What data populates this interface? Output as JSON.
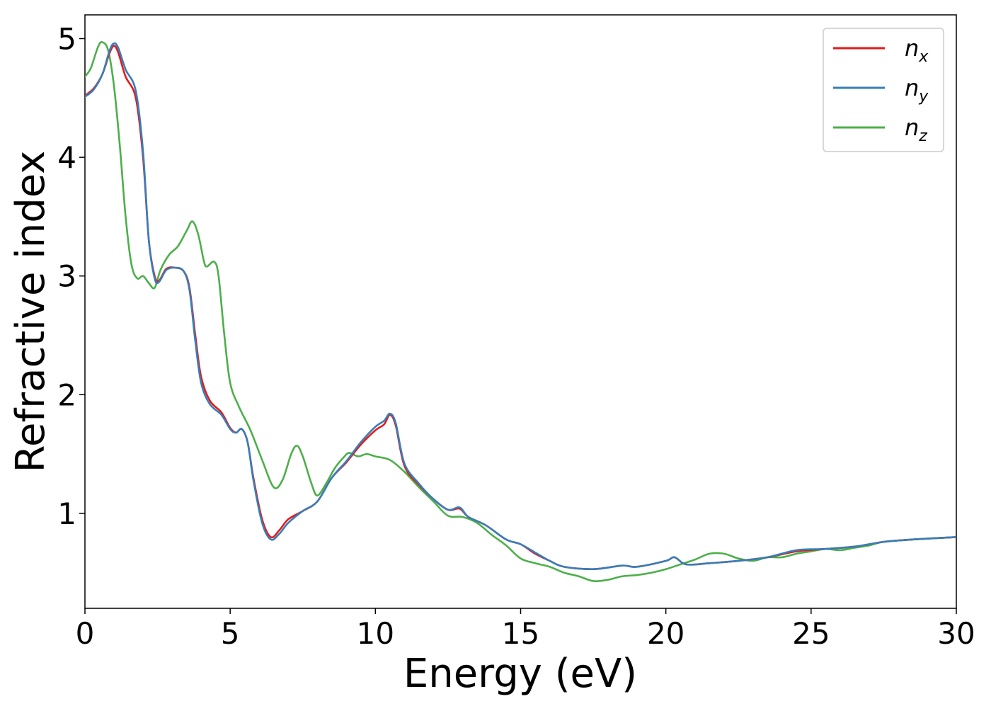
{
  "chart_data": {
    "type": "line",
    "xlabel": "Energy (eV)",
    "ylabel": "Refractive index",
    "xlim": [
      0,
      30
    ],
    "ylim": [
      0.2,
      5.2
    ],
    "x_ticks": [
      0,
      5,
      10,
      15,
      20,
      25,
      30
    ],
    "y_ticks": [
      1,
      2,
      3,
      4,
      5
    ],
    "grid": false,
    "legend_position": "top-right",
    "series": [
      {
        "name": "n_x",
        "label_main": "n",
        "label_sub": "x",
        "color": "#e41a1c",
        "points": [
          [
            0,
            4.52
          ],
          [
            0.3,
            4.58
          ],
          [
            0.6,
            4.7
          ],
          [
            0.85,
            4.88
          ],
          [
            1.0,
            4.94
          ],
          [
            1.15,
            4.88
          ],
          [
            1.4,
            4.68
          ],
          [
            1.75,
            4.5
          ],
          [
            2.0,
            4.0
          ],
          [
            2.2,
            3.3
          ],
          [
            2.4,
            3.0
          ],
          [
            2.55,
            2.96
          ],
          [
            2.8,
            3.06
          ],
          [
            3.1,
            3.07
          ],
          [
            3.4,
            3.04
          ],
          [
            3.6,
            2.9
          ],
          [
            3.8,
            2.5
          ],
          [
            4.0,
            2.15
          ],
          [
            4.3,
            1.95
          ],
          [
            4.7,
            1.85
          ],
          [
            5.0,
            1.72
          ],
          [
            5.2,
            1.68
          ],
          [
            5.4,
            1.71
          ],
          [
            5.6,
            1.6
          ],
          [
            5.8,
            1.3
          ],
          [
            6.1,
            0.95
          ],
          [
            6.4,
            0.8
          ],
          [
            6.7,
            0.86
          ],
          [
            7.0,
            0.95
          ],
          [
            7.5,
            1.02
          ],
          [
            8.0,
            1.1
          ],
          [
            8.5,
            1.3
          ],
          [
            9.0,
            1.43
          ],
          [
            9.5,
            1.58
          ],
          [
            10.0,
            1.7
          ],
          [
            10.3,
            1.75
          ],
          [
            10.5,
            1.83
          ],
          [
            10.7,
            1.74
          ],
          [
            11.0,
            1.4
          ],
          [
            11.5,
            1.24
          ],
          [
            12.0,
            1.12
          ],
          [
            12.5,
            1.03
          ],
          [
            12.9,
            1.04
          ],
          [
            13.2,
            0.97
          ],
          [
            13.8,
            0.9
          ],
          [
            14.5,
            0.78
          ],
          [
            15.0,
            0.74
          ],
          [
            15.5,
            0.66
          ],
          [
            16.0,
            0.6
          ],
          [
            16.5,
            0.55
          ],
          [
            17.5,
            0.53
          ],
          [
            18.5,
            0.56
          ],
          [
            19.0,
            0.55
          ],
          [
            20.0,
            0.6
          ],
          [
            20.3,
            0.63
          ],
          [
            20.7,
            0.57
          ],
          [
            21.5,
            0.58
          ],
          [
            22.5,
            0.6
          ],
          [
            23.5,
            0.63
          ],
          [
            24.5,
            0.68
          ],
          [
            25.5,
            0.7
          ],
          [
            26.5,
            0.72
          ],
          [
            27.5,
            0.76
          ],
          [
            28.5,
            0.78
          ],
          [
            30,
            0.8
          ]
        ]
      },
      {
        "name": "n_y",
        "label_main": "n",
        "label_sub": "y",
        "color": "#377eb8",
        "points": [
          [
            0,
            4.51
          ],
          [
            0.3,
            4.57
          ],
          [
            0.6,
            4.7
          ],
          [
            0.85,
            4.9
          ],
          [
            1.0,
            4.96
          ],
          [
            1.15,
            4.92
          ],
          [
            1.4,
            4.74
          ],
          [
            1.75,
            4.56
          ],
          [
            2.0,
            4.05
          ],
          [
            2.2,
            3.3
          ],
          [
            2.4,
            2.98
          ],
          [
            2.55,
            2.95
          ],
          [
            2.8,
            3.05
          ],
          [
            3.1,
            3.07
          ],
          [
            3.4,
            3.04
          ],
          [
            3.6,
            2.88
          ],
          [
            3.8,
            2.45
          ],
          [
            4.0,
            2.1
          ],
          [
            4.3,
            1.92
          ],
          [
            4.7,
            1.83
          ],
          [
            5.0,
            1.71
          ],
          [
            5.2,
            1.68
          ],
          [
            5.4,
            1.71
          ],
          [
            5.6,
            1.6
          ],
          [
            5.8,
            1.28
          ],
          [
            6.1,
            0.92
          ],
          [
            6.4,
            0.78
          ],
          [
            6.7,
            0.83
          ],
          [
            7.0,
            0.92
          ],
          [
            7.5,
            1.02
          ],
          [
            8.0,
            1.1
          ],
          [
            8.5,
            1.3
          ],
          [
            9.0,
            1.44
          ],
          [
            9.5,
            1.6
          ],
          [
            10.0,
            1.73
          ],
          [
            10.3,
            1.78
          ],
          [
            10.5,
            1.84
          ],
          [
            10.7,
            1.76
          ],
          [
            11.0,
            1.42
          ],
          [
            11.5,
            1.25
          ],
          [
            12.0,
            1.12
          ],
          [
            12.5,
            1.03
          ],
          [
            12.9,
            1.05
          ],
          [
            13.2,
            0.97
          ],
          [
            13.8,
            0.9
          ],
          [
            14.5,
            0.78
          ],
          [
            15.0,
            0.74
          ],
          [
            15.5,
            0.67
          ],
          [
            16.0,
            0.6
          ],
          [
            16.5,
            0.55
          ],
          [
            17.5,
            0.53
          ],
          [
            18.5,
            0.56
          ],
          [
            19.0,
            0.55
          ],
          [
            20.0,
            0.6
          ],
          [
            20.3,
            0.63
          ],
          [
            20.7,
            0.57
          ],
          [
            21.5,
            0.58
          ],
          [
            22.5,
            0.6
          ],
          [
            23.5,
            0.63
          ],
          [
            24.5,
            0.69
          ],
          [
            25.5,
            0.7
          ],
          [
            26.5,
            0.72
          ],
          [
            27.5,
            0.76
          ],
          [
            28.5,
            0.78
          ],
          [
            30,
            0.8
          ]
        ]
      },
      {
        "name": "n_z",
        "label_main": "n",
        "label_sub": "z",
        "color": "#4daf4a",
        "points": [
          [
            0,
            4.68
          ],
          [
            0.2,
            4.75
          ],
          [
            0.45,
            4.93
          ],
          [
            0.6,
            4.97
          ],
          [
            0.8,
            4.9
          ],
          [
            1.0,
            4.6
          ],
          [
            1.2,
            4.1
          ],
          [
            1.4,
            3.5
          ],
          [
            1.6,
            3.1
          ],
          [
            1.8,
            2.98
          ],
          [
            2.0,
            3.0
          ],
          [
            2.2,
            2.94
          ],
          [
            2.4,
            2.9
          ],
          [
            2.6,
            3.05
          ],
          [
            2.9,
            3.18
          ],
          [
            3.2,
            3.25
          ],
          [
            3.5,
            3.38
          ],
          [
            3.7,
            3.46
          ],
          [
            3.9,
            3.35
          ],
          [
            4.1,
            3.12
          ],
          [
            4.2,
            3.08
          ],
          [
            4.45,
            3.12
          ],
          [
            4.6,
            3.0
          ],
          [
            4.8,
            2.5
          ],
          [
            5.0,
            2.1
          ],
          [
            5.3,
            1.9
          ],
          [
            5.7,
            1.7
          ],
          [
            6.1,
            1.45
          ],
          [
            6.5,
            1.22
          ],
          [
            6.8,
            1.28
          ],
          [
            7.1,
            1.5
          ],
          [
            7.3,
            1.57
          ],
          [
            7.5,
            1.48
          ],
          [
            7.8,
            1.25
          ],
          [
            8.0,
            1.15
          ],
          [
            8.3,
            1.25
          ],
          [
            8.6,
            1.38
          ],
          [
            8.9,
            1.47
          ],
          [
            9.1,
            1.51
          ],
          [
            9.4,
            1.48
          ],
          [
            9.7,
            1.5
          ],
          [
            10.0,
            1.48
          ],
          [
            10.5,
            1.45
          ],
          [
            11.0,
            1.35
          ],
          [
            11.5,
            1.22
          ],
          [
            12.0,
            1.1
          ],
          [
            12.5,
            0.98
          ],
          [
            13.0,
            0.97
          ],
          [
            13.5,
            0.92
          ],
          [
            14.0,
            0.82
          ],
          [
            14.5,
            0.73
          ],
          [
            15.0,
            0.62
          ],
          [
            15.5,
            0.58
          ],
          [
            16.0,
            0.55
          ],
          [
            16.5,
            0.5
          ],
          [
            17.0,
            0.47
          ],
          [
            17.5,
            0.43
          ],
          [
            18.0,
            0.44
          ],
          [
            18.5,
            0.47
          ],
          [
            19.0,
            0.48
          ],
          [
            19.5,
            0.5
          ],
          [
            20.0,
            0.53
          ],
          [
            20.5,
            0.57
          ],
          [
            21.0,
            0.61
          ],
          [
            21.5,
            0.66
          ],
          [
            22.0,
            0.66
          ],
          [
            22.5,
            0.62
          ],
          [
            23.0,
            0.6
          ],
          [
            23.5,
            0.63
          ],
          [
            24.0,
            0.63
          ],
          [
            24.5,
            0.66
          ],
          [
            25.0,
            0.68
          ],
          [
            25.5,
            0.7
          ],
          [
            26.0,
            0.69
          ],
          [
            26.5,
            0.71
          ],
          [
            27.0,
            0.73
          ],
          [
            27.5,
            0.76
          ],
          [
            28.5,
            0.78
          ],
          [
            30,
            0.8
          ]
        ]
      }
    ]
  }
}
